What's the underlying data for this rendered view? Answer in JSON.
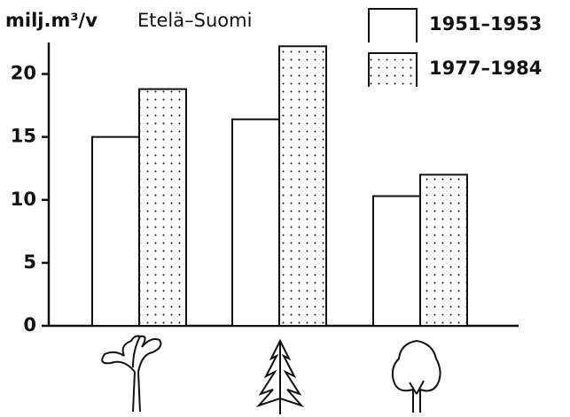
{
  "chart_data": {
    "type": "bar",
    "title": "Etelä–Suomi",
    "y_label": "milj.m³/v",
    "categories": [
      null,
      null,
      null
    ],
    "series": [
      {
        "name": "1951–1953",
        "color": "#ffffff",
        "pattern": "none",
        "values": [
          15.0,
          16.4,
          10.3
        ]
      },
      {
        "name": "1977–1984",
        "color": "#ffffff",
        "pattern": "dots",
        "values": [
          18.8,
          22.2,
          12.0
        ]
      }
    ],
    "ylim": [
      0,
      22.5
    ],
    "yticks": [
      0,
      5,
      10,
      15,
      20
    ],
    "grid": false
  }
}
